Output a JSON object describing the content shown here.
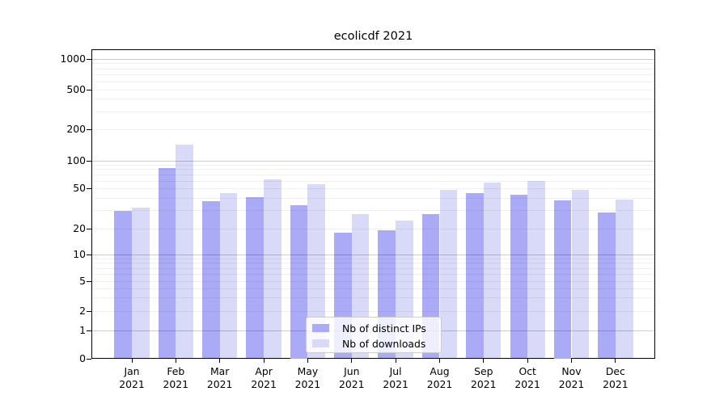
{
  "chart_data": {
    "type": "bar",
    "title": "ecolicdf 2021",
    "year_label": "2021",
    "categories": [
      "Jan",
      "Feb",
      "Mar",
      "Apr",
      "May",
      "Jun",
      "Jul",
      "Aug",
      "Sep",
      "Oct",
      "Nov",
      "Dec"
    ],
    "series": [
      {
        "name": "Nb of distinct IPs",
        "color": "#aaaaf6",
        "values": [
          30,
          84,
          37,
          41,
          34,
          18,
          19,
          28,
          45,
          43,
          38,
          29
        ]
      },
      {
        "name": "Nb of downloads",
        "color": "#d9d9f8",
        "values": [
          32,
          143,
          45,
          63,
          55,
          28,
          24,
          48,
          58,
          60,
          48,
          39
        ]
      }
    ],
    "yticks": [
      0,
      1,
      2,
      5,
      10,
      20,
      50,
      100,
      200,
      500,
      1000
    ],
    "ylabel": "",
    "xlabel": "",
    "yscale": "log-like (0,1,2,5,10,20,50,100,200,500,1000)",
    "ylim": [
      0,
      1250
    ],
    "grid": true,
    "legend_position": "lower center"
  }
}
